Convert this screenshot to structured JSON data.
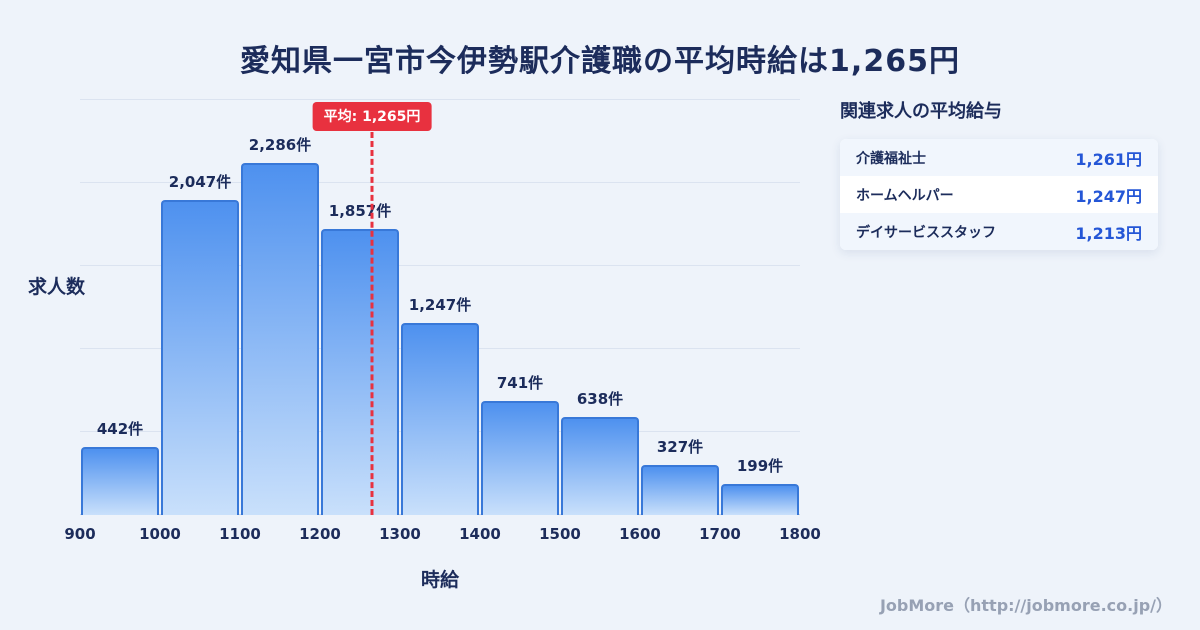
{
  "page": {
    "footer": "JobMore（http://jobmore.co.jp/）"
  },
  "chart_data": {
    "type": "bar",
    "title": "愛知県一宮市今伊勢駅介護職の平均時給は1,265円",
    "xlabel": "時給",
    "ylabel": "求人数",
    "bin_edges": [
      900,
      1000,
      1100,
      1200,
      1300,
      1400,
      1500,
      1600,
      1700,
      1800
    ],
    "categories": [
      "900-1000",
      "1000-1100",
      "1100-1200",
      "1200-1300",
      "1300-1400",
      "1400-1500",
      "1500-1600",
      "1600-1700",
      "1700-1800"
    ],
    "values": [
      442,
      2047,
      2286,
      1857,
      1247,
      741,
      638,
      327,
      199
    ],
    "bar_labels": [
      "442件",
      "2,047件",
      "2,286件",
      "1,857件",
      "1,247件",
      "741件",
      "638件",
      "327件",
      "199件"
    ],
    "x_ticks": [
      "900",
      "1000",
      "1100",
      "1200",
      "1300",
      "1400",
      "1500",
      "1600",
      "1700",
      "1800"
    ],
    "ylim": [
      0,
      2286
    ],
    "grid": "horizontal",
    "legend": "none",
    "average": {
      "value": 1265,
      "label": "平均: 1,265円"
    },
    "colors": {
      "bar_gradient_top": "#4e91ef",
      "bar_gradient_bottom": "#c9e0fb",
      "bar_border": "#3878d8",
      "average_red": "#e8313f",
      "text_navy": "#1c2c5b",
      "value_blue": "#2456d6",
      "background": "#eef3fa"
    }
  },
  "related": {
    "heading": "関連求人の平均給与",
    "rows": [
      {
        "label": "介護福祉士",
        "value": "1,261円"
      },
      {
        "label": "ホームヘルパー",
        "value": "1,247円"
      },
      {
        "label": "デイサービススタッフ",
        "value": "1,213円"
      }
    ]
  }
}
